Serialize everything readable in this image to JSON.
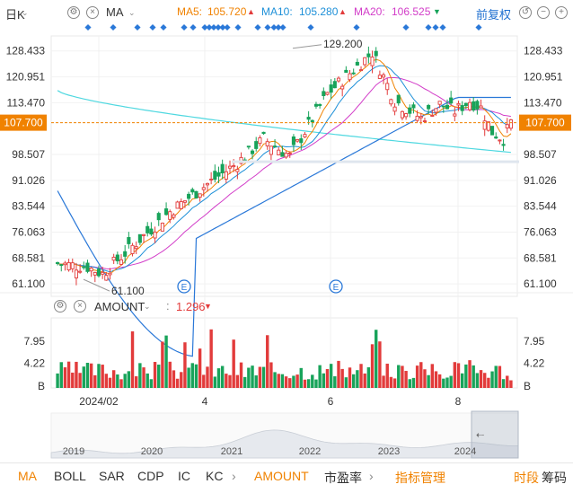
{
  "toolbar": {
    "period": "日K",
    "indicator": "MA",
    "ma5_label": "MA5:",
    "ma5_value": "105.720",
    "ma10_label": "MA10:",
    "ma10_value": "105.280",
    "ma20_label": "MA20:",
    "ma20_value": "106.525",
    "adjust": "前复权",
    "colors": {
      "ma5": "#f08200",
      "ma10": "#1e90d8",
      "ma20": "#d23cc8",
      "up": "#e23b3b",
      "down": "#18a35a"
    }
  },
  "volume_header": {
    "indicator": "AMOUNT",
    "value": "1.296"
  },
  "bottom_tabs": [
    "MA",
    "BOLL",
    "SAR",
    "CDP",
    "IC",
    "KC",
    "AMOUNT",
    "市盈率",
    "指标管理",
    "时段",
    "筹码"
  ],
  "bottom_tabs_active": [
    "MA",
    "AMOUNT"
  ],
  "chart_data": [
    {
      "type": "candlestick",
      "price_ticks": [
        "128.433",
        "120.951",
        "113.470",
        "98.507",
        "91.026",
        "83.544",
        "76.063",
        "68.581",
        "61.100"
      ],
      "current_price": "107.700",
      "max_label": "129.200",
      "min_label": "61.100",
      "ylim": [
        57.5,
        132
      ],
      "date_ticks": [
        "2024/02",
        "4",
        "6",
        "8"
      ],
      "event_markers": [
        "E",
        "E"
      ],
      "ma_lines": {
        "ma5": "MA5",
        "ma10": "MA10",
        "ma20": "MA20"
      },
      "long_ma_cyan_start": 117,
      "long_ma_blue_start": 88
    },
    {
      "type": "bar",
      "title": "AMOUNT",
      "ticks": [
        "7.95",
        "4.22",
        "B"
      ],
      "ylim": [
        0,
        11
      ],
      "latest": "1.296"
    },
    {
      "type": "area",
      "years": [
        "2019",
        "2020",
        "2021",
        "2022",
        "2023",
        "2024"
      ]
    }
  ]
}
